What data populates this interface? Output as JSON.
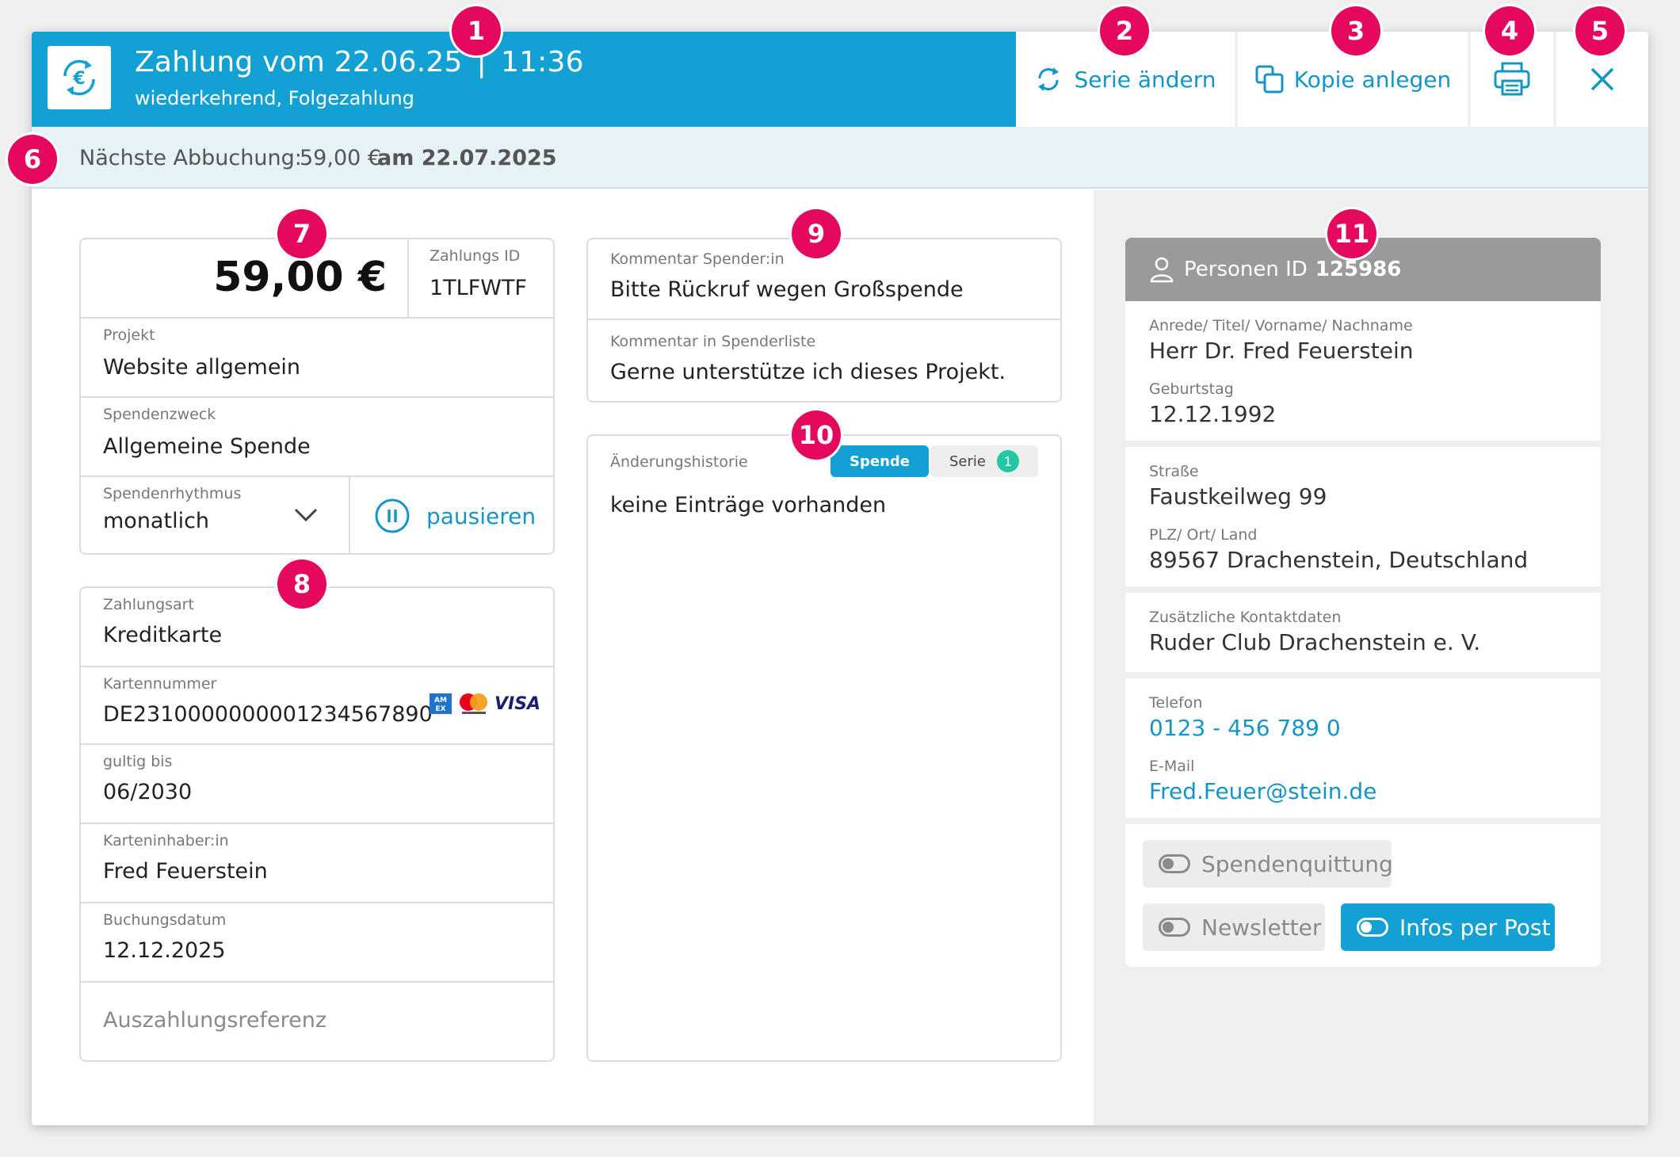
{
  "colors": {
    "header": "#13a1d3",
    "accent": "#1495c7",
    "badge": "#e4085f",
    "counter": "#22c7a3"
  },
  "header": {
    "icon": "euro-cycle-icon",
    "title_date": "Zahlung vom 22.06.25",
    "title_separator": "|",
    "title_time": "11:36",
    "subtitle": "wiederkehrend, Folgezahlung"
  },
  "toolbar": {
    "change_series": {
      "label": "Serie ändern",
      "icon": "refresh-icon"
    },
    "create_copy": {
      "label": "Kopie anlegen",
      "icon": "copy-icon"
    },
    "print": {
      "icon": "printer-icon"
    },
    "close": {
      "icon": "close-icon"
    }
  },
  "next_debit": {
    "label": "Nächste Abbuchung:",
    "amount": "59,00 €",
    "date": "am 22.07.2025"
  },
  "payment": {
    "amount": "59,00 €",
    "payment_id_label": "Zahlungs ID",
    "payment_id": "1TLFWTF",
    "project_label": "Projekt",
    "project": "Website allgemein",
    "purpose_label": "Spendenzweck",
    "purpose": "Allgemeine Spende",
    "rhythm_label": "Spendenrhythmus",
    "rhythm": "monatlich",
    "pause_label": "pausieren"
  },
  "method": {
    "type_label": "Zahlungsart",
    "type": "Kreditkarte",
    "card_number_label": "Kartennummer",
    "card_number": "DE2310000000001234567890",
    "card_brands": [
      "amex",
      "mastercard",
      "VISA"
    ],
    "valid_label": "gultig bis",
    "valid": "06/2030",
    "holder_label": "Karteninhaber:in",
    "holder": "Fred Feuerstein",
    "booking_label": "Buchungsdatum",
    "booking": "12.12.2025",
    "payout_placeholder": "Auszahlungsreferenz"
  },
  "comments": {
    "donor_label": "Kommentar Spender:in",
    "donor": "Bitte Rückruf wegen Großspende",
    "list_label": "Kommentar in Spenderliste",
    "list": "Gerne unterstütze ich dieses Projekt."
  },
  "history": {
    "label": "Änderungshistorie",
    "tab_donation": "Spende",
    "tab_series": "Serie",
    "series_count": "1",
    "empty": "keine Einträge vorhanden"
  },
  "person": {
    "id_label": "Personen ID",
    "id": "125986",
    "name_label": "Anrede/ Titel/ Vorname/ Nachname",
    "name": "Herr Dr. Fred Feuerstein",
    "birthday_label": "Geburtstag",
    "birthday": "12.12.1992",
    "street_label": "Straße",
    "street": "Faustkeilweg 99",
    "city_label": "PLZ/ Ort/ Land",
    "city": "89567 Drachenstein, Deutschland",
    "extra_label": "Zusätzliche Kontaktdaten",
    "extra": "Ruder Club Drachenstein e. V.",
    "phone_label": "Telefon",
    "phone": "0123 - 456 789 0",
    "email_label": "E-Mail",
    "email": "Fred.Feuer@stein.de"
  },
  "toggles": {
    "receipt": {
      "label": "Spendenquittung",
      "on": false
    },
    "newsletter": {
      "label": "Newsletter",
      "on": false
    },
    "post": {
      "label": "Infos per Post",
      "on": true
    }
  },
  "badges": [
    "1",
    "2",
    "3",
    "4",
    "5",
    "6",
    "7",
    "8",
    "9",
    "10",
    "11"
  ]
}
